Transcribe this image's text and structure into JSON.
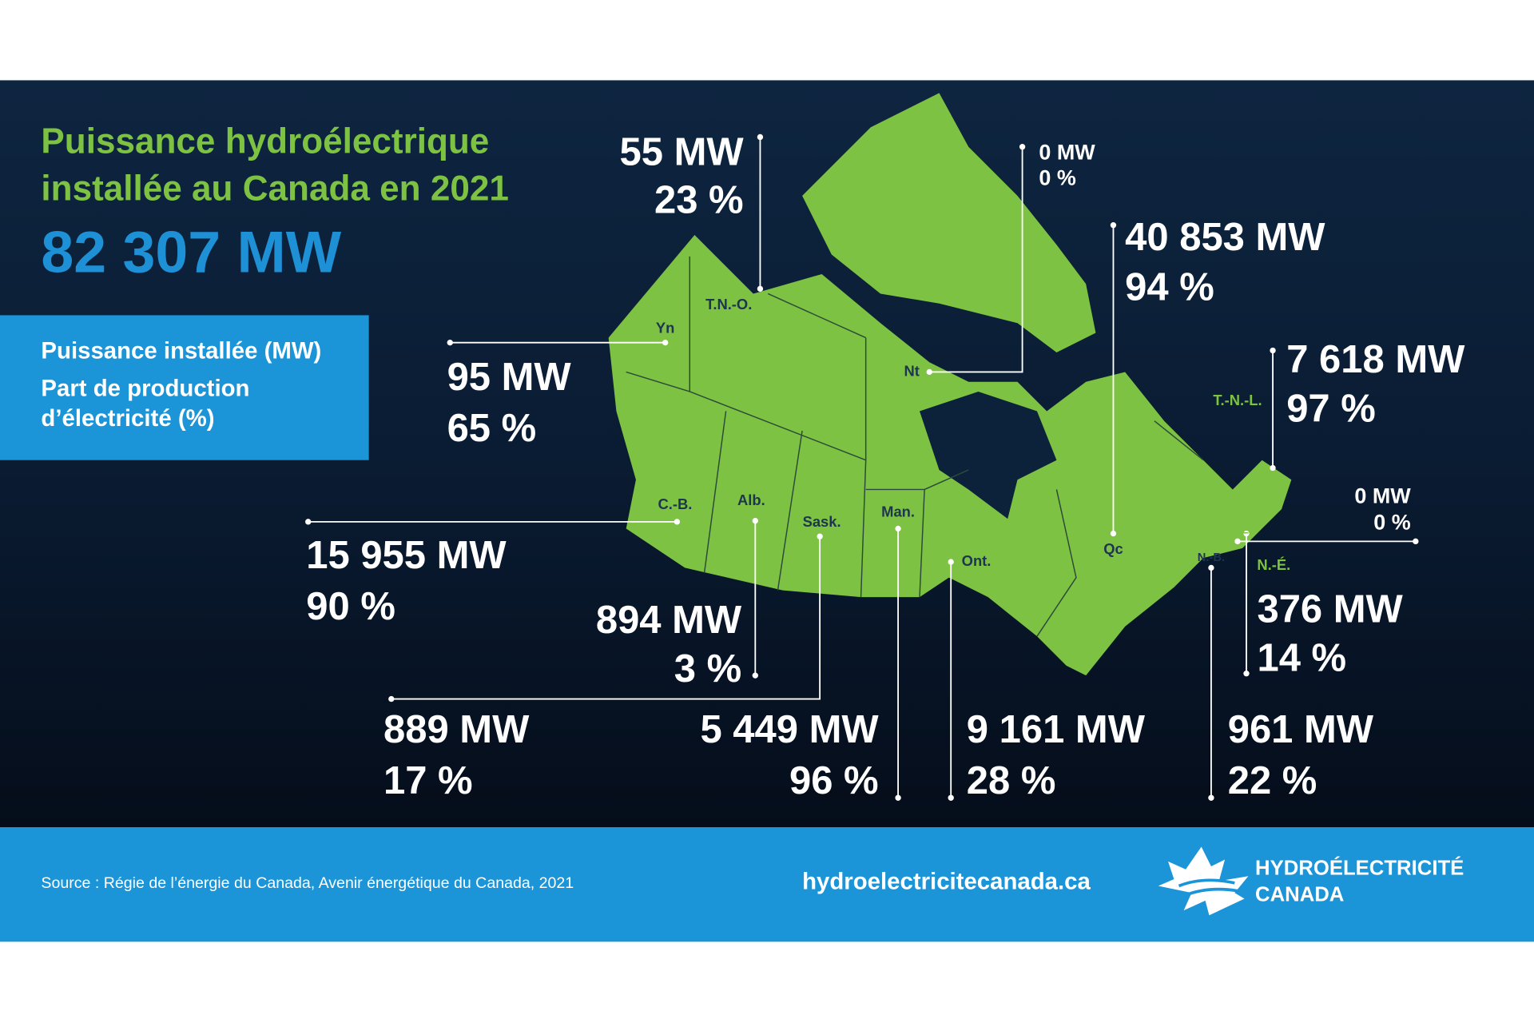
{
  "title": {
    "line1": "Puissance hydroélectrique",
    "line2": "installée au Canada en 2021"
  },
  "total": "82 307 MW",
  "legend": [
    "Puissance installée (MW)",
    "Part de production",
    "d’électricité (%)"
  ],
  "provinces": [
    {
      "abbr": "Yn",
      "capacity": "95 MW",
      "share": "65 %"
    },
    {
      "abbr": "T.N.-O.",
      "capacity": "55 MW",
      "share": "23 %"
    },
    {
      "abbr": "Nt",
      "capacity": "0 MW",
      "share": "0 %"
    },
    {
      "abbr": "Qc",
      "capacity": "40 853 MW",
      "share": "94 %"
    },
    {
      "abbr": "T.-N.-L.",
      "capacity": "7 618 MW",
      "share": "97 %"
    },
    {
      "abbr": "Î.-P.-É.",
      "capacity": "0 MW",
      "share": "0 %"
    },
    {
      "abbr": "N.-É.",
      "capacity": "376 MW",
      "share": "14 %"
    },
    {
      "abbr": "N.-B.",
      "capacity": "961 MW",
      "share": "22 %"
    },
    {
      "abbr": "C.-B.",
      "capacity": "15 955 MW",
      "share": "90 %"
    },
    {
      "abbr": "Alb.",
      "capacity": "894 MW",
      "share": "3 %"
    },
    {
      "abbr": "Sask.",
      "capacity": "889 MW",
      "share": "17 %"
    },
    {
      "abbr": "Man.",
      "capacity": "5 449 MW",
      "share": "96 %"
    },
    {
      "abbr": "Ont.",
      "capacity": "9 161 MW",
      "share": "28 %"
    }
  ],
  "footer": {
    "source": "Source : Régie de l’énergie du Canada, Avenir énergétique du Canada, 2021",
    "website": "hydroelectricitecanada.ca",
    "logo": {
      "line1": "HYDROÉLECTRICITÉ",
      "line2": "CANADA"
    }
  }
}
